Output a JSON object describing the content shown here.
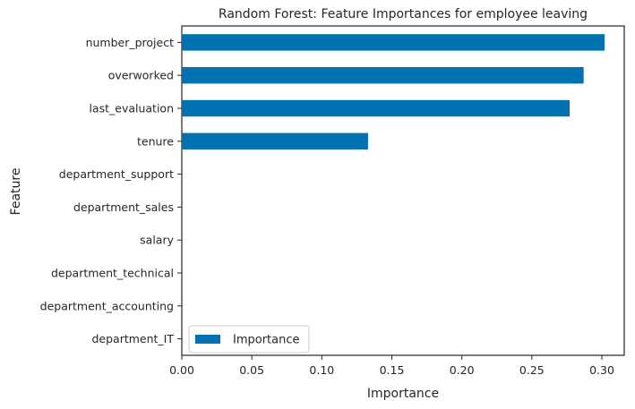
{
  "chart_data": {
    "type": "bar",
    "orientation": "horizontal",
    "title": "Random Forest: Feature Importances for employee leaving",
    "xlabel": "Importance",
    "ylabel": "Feature",
    "xlim": [
      0,
      0.316
    ],
    "xticks": [
      0.0,
      0.05,
      0.1,
      0.15,
      0.2,
      0.25,
      0.3
    ],
    "xtick_labels": [
      "0.00",
      "0.05",
      "0.10",
      "0.15",
      "0.20",
      "0.25",
      "0.30"
    ],
    "categories": [
      "number_project",
      "overworked",
      "last_evaluation",
      "tenure",
      "department_support",
      "department_sales",
      "salary",
      "department_technical",
      "department_accounting",
      "department_IT"
    ],
    "values": [
      0.302,
      0.287,
      0.277,
      0.133,
      0.0,
      0.0,
      0.0,
      0.0,
      0.0,
      0.0
    ],
    "series": [
      {
        "name": "Importance",
        "color": "#0072b2"
      }
    ],
    "legend_position": "lower-left",
    "grid": false
  }
}
